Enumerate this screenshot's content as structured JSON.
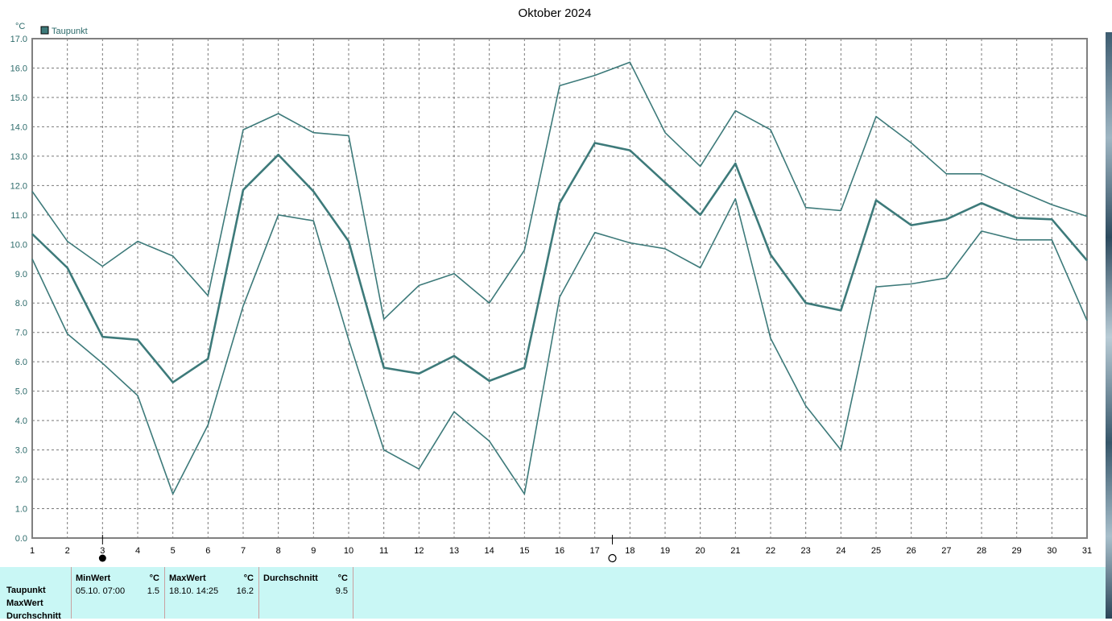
{
  "chart_data": {
    "type": "line",
    "title": "Oktober 2024",
    "ylabel": "°C",
    "legend": {
      "label": "Taupunkt",
      "color": "#3d7a7a",
      "placement": "top-left"
    },
    "ylim": [
      0,
      17
    ],
    "yticks": [
      "0.0",
      "1.0",
      "2.0",
      "3.0",
      "4.0",
      "5.0",
      "6.0",
      "7.0",
      "8.0",
      "9.0",
      "10.0",
      "11.0",
      "12.0",
      "13.0",
      "14.0",
      "15.0",
      "16.0",
      "17.0"
    ],
    "x": [
      1,
      2,
      3,
      4,
      5,
      6,
      7,
      8,
      9,
      10,
      11,
      12,
      13,
      14,
      15,
      16,
      17,
      18,
      19,
      20,
      21,
      22,
      23,
      24,
      25,
      26,
      27,
      28,
      29,
      30,
      31
    ],
    "grid": true,
    "series": [
      {
        "values": [
          11.8,
          10.1,
          9.25,
          10.1,
          9.6,
          8.25,
          13.9,
          14.45,
          13.8,
          13.7,
          7.45,
          8.6,
          9.0,
          8.0,
          9.8,
          15.4,
          15.75,
          16.2,
          13.8,
          12.65,
          14.55,
          13.9,
          11.25,
          11.15,
          14.35,
          13.45,
          12.4,
          12.4,
          11.85,
          11.35,
          10.95
        ],
        "color": "#3d7a7a",
        "width": 1.6
      },
      {
        "values": [
          10.35,
          9.2,
          6.85,
          6.75,
          5.3,
          6.1,
          11.85,
          13.05,
          11.8,
          10.1,
          5.8,
          5.6,
          6.2,
          5.35,
          5.8,
          11.4,
          13.45,
          13.2,
          12.1,
          11.0,
          12.75,
          9.65,
          8.0,
          7.75,
          11.5,
          10.65,
          10.85,
          11.4,
          10.9,
          10.85,
          9.45
        ],
        "color": "#3d7a7a",
        "width": 2.6
      },
      {
        "values": [
          9.5,
          6.95,
          5.95,
          4.85,
          1.5,
          3.85,
          7.9,
          11.0,
          10.8,
          6.75,
          3.0,
          2.35,
          4.3,
          3.3,
          1.5,
          8.2,
          10.4,
          10.05,
          9.85,
          9.2,
          11.55,
          6.8,
          4.5,
          3.0,
          8.55,
          8.65,
          8.85,
          10.45,
          10.15,
          10.15,
          7.4
        ],
        "color": "#3d7a7a",
        "width": 1.6
      }
    ],
    "markers": [
      {
        "day": 3,
        "symbol": "filled-moon-icon"
      },
      {
        "day": 17.5,
        "symbol": "open-moon-icon"
      }
    ]
  },
  "stats": {
    "row_labels": [
      "Taupunkt",
      "MaxWert",
      "Durchschnitt"
    ],
    "columns": [
      {
        "header": "MinWert",
        "unit": "°C",
        "date": "05.10.  07:00",
        "value": "1.5"
      },
      {
        "header": "MaxWert",
        "unit": "°C",
        "date": "18.10.  14:25",
        "value": "16.2"
      },
      {
        "header": "Durchschnitt",
        "unit": "°C",
        "date": "",
        "value": "9.5"
      }
    ]
  }
}
